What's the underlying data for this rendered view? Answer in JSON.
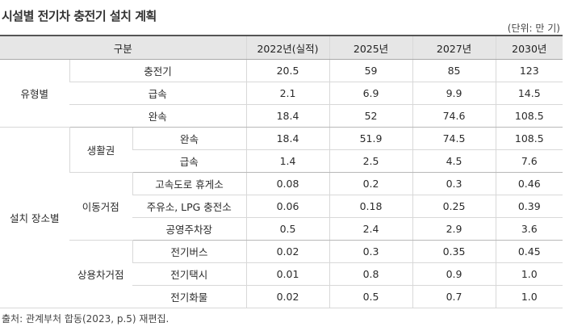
{
  "title": "시설별 전기차 충전기 설치 계획",
  "unit": "(단위: 만 기)",
  "table": {
    "header": {
      "category": "구분",
      "years": [
        "2022년(실적)",
        "2025년",
        "2027년",
        "2030년"
      ]
    },
    "by_type": {
      "label": "유형별",
      "rows": [
        {
          "item": "충전기",
          "values": [
            "20.5",
            "59",
            "85",
            "123"
          ]
        },
        {
          "item": "급속",
          "values": [
            "2.1",
            "6.9",
            "9.9",
            "14.5"
          ]
        },
        {
          "item": "완속",
          "values": [
            "18.4",
            "52",
            "74.6",
            "108.5"
          ]
        }
      ]
    },
    "by_location": {
      "label": "설치 장소별",
      "groups": [
        {
          "label": "생활권",
          "rows": [
            {
              "item": "완속",
              "values": [
                "18.4",
                "51.9",
                "74.5",
                "108.5"
              ]
            },
            {
              "item": "급속",
              "values": [
                "1.4",
                "2.5",
                "4.5",
                "7.6"
              ]
            }
          ]
        },
        {
          "label": "이동거점",
          "rows": [
            {
              "item": "고속도로 휴게소",
              "values": [
                "0.08",
                "0.2",
                "0.3",
                "0.46"
              ]
            },
            {
              "item": "주유소, LPG 충전소",
              "values": [
                "0.06",
                "0.18",
                "0.25",
                "0.39"
              ]
            },
            {
              "item": "공영주차장",
              "values": [
                "0.5",
                "2.4",
                "2.9",
                "3.6"
              ]
            }
          ]
        },
        {
          "label": "상용차거점",
          "rows": [
            {
              "item": "전기버스",
              "values": [
                "0.02",
                "0.3",
                "0.35",
                "0.45"
              ]
            },
            {
              "item": "전기택시",
              "values": [
                "0.01",
                "0.8",
                "0.9",
                "1.0"
              ]
            },
            {
              "item": "전기화물",
              "values": [
                "0.02",
                "0.5",
                "0.7",
                "1.0"
              ]
            }
          ]
        }
      ]
    }
  },
  "source": "출처: 관계부처 합동(2023, p.5) 재편집."
}
